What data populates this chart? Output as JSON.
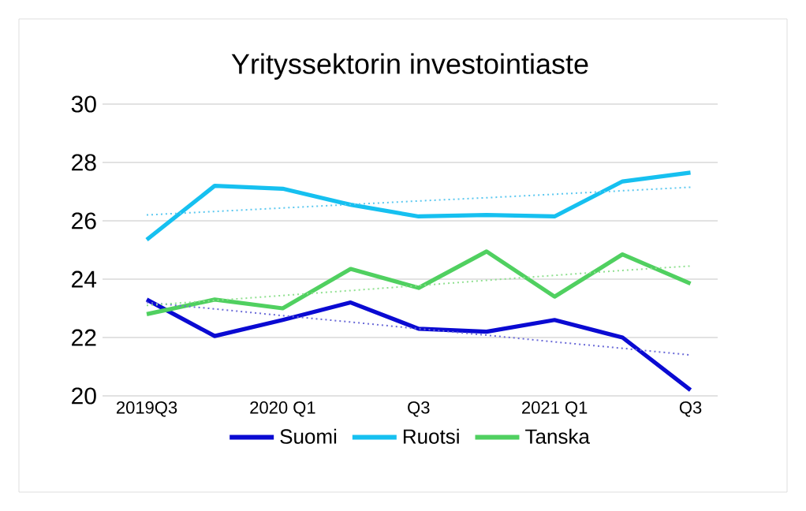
{
  "chart_data": {
    "type": "line",
    "title": "Yrityssektorin investointiaste",
    "categories": [
      "2019Q3",
      null,
      "2020 Q1",
      null,
      "Q3",
      null,
      "2021 Q1",
      null,
      "Q3"
    ],
    "series": [
      {
        "name": "Suomi",
        "color": "#0a0ad2",
        "values": [
          23.3,
          22.05,
          22.6,
          23.2,
          22.3,
          22.2,
          22.6,
          22.0,
          20.2
        ]
      },
      {
        "name": "Ruotsi",
        "color": "#16c0f0",
        "values": [
          25.35,
          27.2,
          27.1,
          26.55,
          26.15,
          26.2,
          26.15,
          27.35,
          27.65
        ]
      },
      {
        "name": "Tanska",
        "color": "#50d060",
        "values": [
          22.8,
          23.3,
          23.0,
          24.35,
          23.7,
          24.95,
          23.4,
          24.85,
          23.85
        ]
      },
      {
        "color": "#6b6bd8",
        "line_style": "dotted",
        "values": [
          23.2,
          22.98,
          22.75,
          22.53,
          22.3,
          22.08,
          21.85,
          21.63,
          21.4
        ]
      },
      {
        "color": "#5bc8f0",
        "line_style": "dotted",
        "values": [
          26.2,
          26.32,
          26.44,
          26.56,
          26.68,
          26.79,
          26.91,
          27.03,
          27.15
        ]
      },
      {
        "color": "#90e090",
        "line_style": "dotted",
        "values": [
          23.1,
          23.27,
          23.44,
          23.61,
          23.78,
          23.96,
          24.13,
          24.3,
          24.45
        ]
      }
    ],
    "ylim": [
      20,
      30
    ],
    "yticks": [
      20,
      22,
      24,
      26,
      28,
      30
    ],
    "grid": "y",
    "legend": "bottom",
    "marker": "none",
    "line_style": "solid"
  }
}
